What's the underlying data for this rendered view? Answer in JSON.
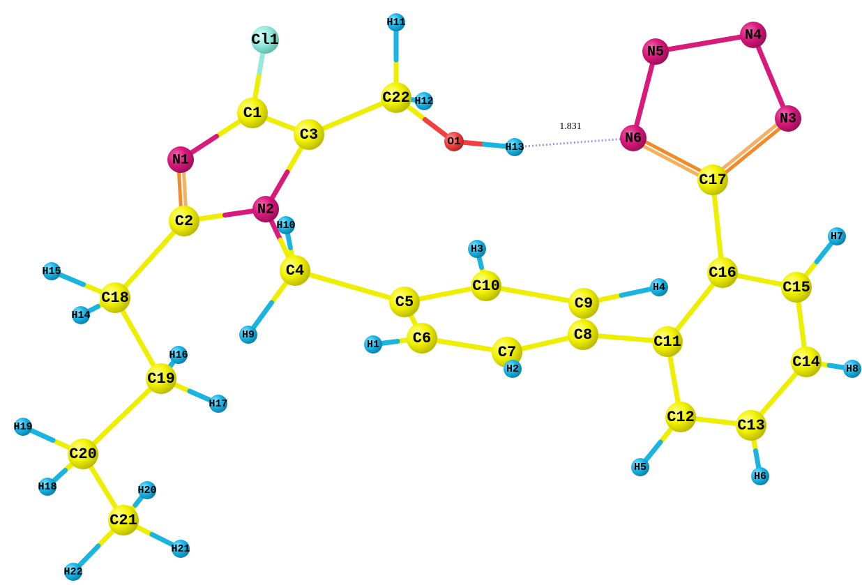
{
  "atoms": [
    "Cl1",
    "C1",
    "C3",
    "C22",
    "H11",
    "H12",
    "O1",
    "H13",
    "N6",
    "N5",
    "N4",
    "N3",
    "C17",
    "N1",
    "N2",
    "H10",
    "C2",
    "C4",
    "H9",
    "C18",
    "H15",
    "H14",
    "C19",
    "H16",
    "H17",
    "C20",
    "H19",
    "H18",
    "C21",
    "H20",
    "H21",
    "H22",
    "C5",
    "C10",
    "H3",
    "C9",
    "H4",
    "C6",
    "H1",
    "C7",
    "H2",
    "C8",
    "C11",
    "C16",
    "H7",
    "C15",
    "C14",
    "H8",
    "C12",
    "H5",
    "C13",
    "H6"
  ],
  "distance_label": "1.831"
}
